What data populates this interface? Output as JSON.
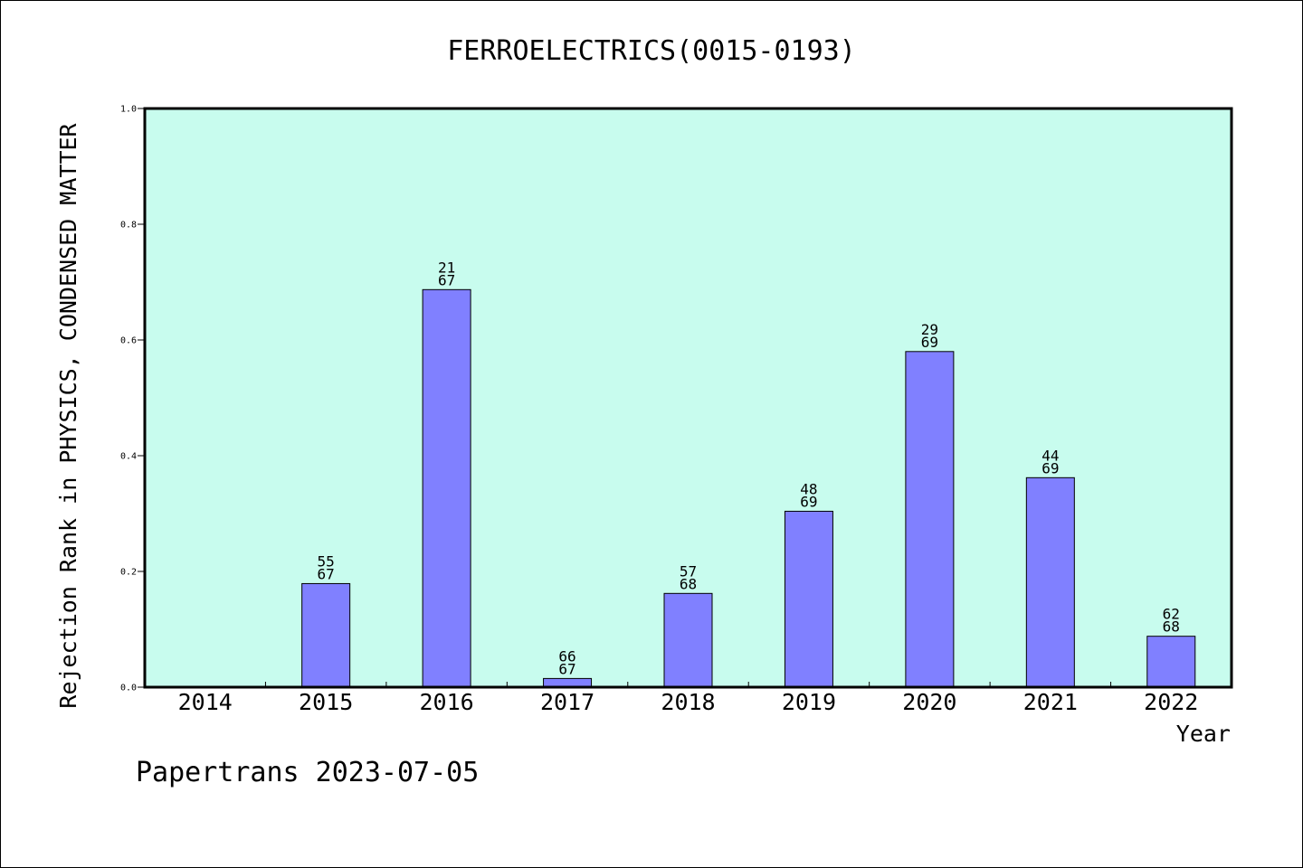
{
  "chart_data": {
    "type": "bar",
    "title": "FERROELECTRICS(0015-0193)",
    "xlabel": "Year",
    "ylabel": "Rejection Rank in PHYSICS, CONDENSED MATTER",
    "ylim": [
      0,
      1.0
    ],
    "yticks": [
      "0.0",
      "0.2",
      "0.4",
      "0.6",
      "0.8",
      "1.0"
    ],
    "categories": [
      "2014",
      "2015",
      "2016",
      "2017",
      "2018",
      "2019",
      "2020",
      "2021",
      "2022"
    ],
    "values": [
      null,
      0.179,
      0.687,
      0.015,
      0.162,
      0.304,
      0.58,
      0.362,
      0.088
    ],
    "rank_labels": [
      null,
      {
        "num": "55",
        "den": "67"
      },
      {
        "num": "21",
        "den": "67"
      },
      {
        "num": "66",
        "den": "67"
      },
      {
        "num": "57",
        "den": "68"
      },
      {
        "num": "48",
        "den": "69"
      },
      {
        "num": "29",
        "den": "69"
      },
      {
        "num": "44",
        "den": "69"
      },
      {
        "num": "62",
        "den": "68"
      }
    ],
    "grid": false,
    "legend": "none"
  },
  "footer": "Papertrans 2023-07-05",
  "colors": {
    "plot_background": "#c8fcee",
    "bar_fill": "#8080ff",
    "bar_stroke": "#000000",
    "text": "#000000"
  }
}
